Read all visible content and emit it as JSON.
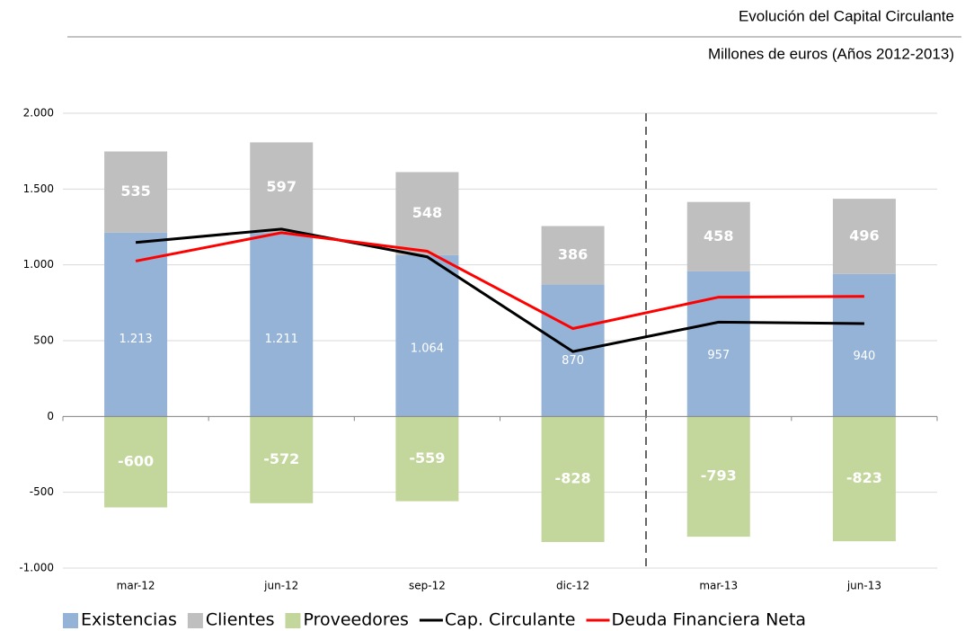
{
  "chart_data": {
    "type": "bar",
    "title": "Evolución del Capital Circulante",
    "subtitle": "Millones de euros (Años 2012-2013)",
    "categories": [
      "mar-12",
      "jun-12",
      "sep-12",
      "dic-12",
      "mar-13",
      "jun-13"
    ],
    "series": [
      {
        "name": "Existencias",
        "type": "bar",
        "color": "#95b3d7",
        "values": [
          1213,
          1211,
          1064,
          870,
          957,
          940
        ],
        "value_labels": [
          "1.213",
          "1.211",
          "1.064",
          "870",
          "957",
          "940"
        ]
      },
      {
        "name": "Clientes",
        "type": "bar",
        "color": "#bfbfbf",
        "values": [
          535,
          597,
          548,
          386,
          458,
          496
        ]
      },
      {
        "name": "Proveedores",
        "type": "bar",
        "color": "#c3d69b",
        "values": [
          -600,
          -572,
          -559,
          -828,
          -793,
          -823
        ]
      },
      {
        "name": "Cap. Circulante",
        "type": "line",
        "color": "#000000",
        "values": [
          1148,
          1236,
          1053,
          428,
          622,
          613
        ]
      },
      {
        "name": "Deuda Financiera Neta",
        "type": "line",
        "color": "#ff0000",
        "values": [
          1025,
          1212,
          1090,
          580,
          787,
          792
        ]
      }
    ],
    "ylim": [
      -1000,
      2000
    ],
    "yticks": [
      {
        "value": -1000,
        "label": "-1.000"
      },
      -500,
      0,
      500,
      {
        "value": 1000,
        "label": "1.000"
      },
      {
        "value": 1500,
        "label": "1.500"
      },
      {
        "value": 2000,
        "label": "2.000"
      }
    ],
    "grid": true
  }
}
